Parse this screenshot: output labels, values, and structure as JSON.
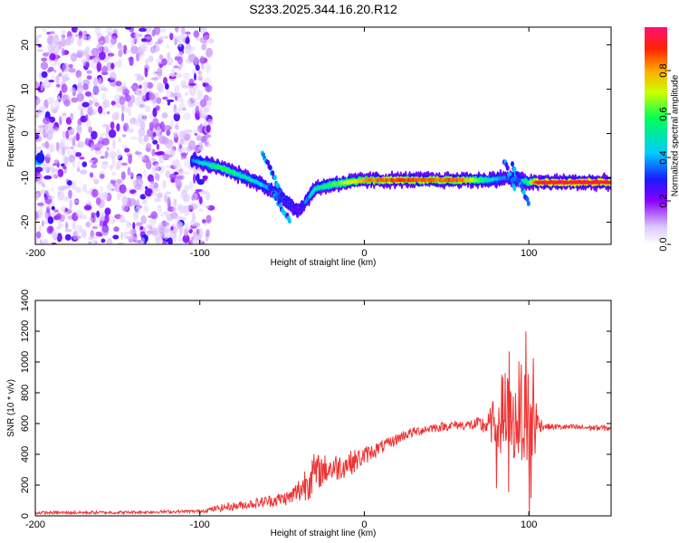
{
  "title": "S233.2025.344.16.20.R12",
  "chart_data": [
    {
      "type": "heatmap",
      "name": "dynamic spectrum",
      "xlabel": "Height of straight line (km)",
      "ylabel": "Frequency (Hz)",
      "xlim": [
        -200,
        150
      ],
      "ylim": [
        -25,
        24
      ],
      "x_ticks": [
        "-200",
        "-100",
        "0",
        "100"
      ],
      "y_ticks": [
        "-20",
        "-10",
        "0",
        "10",
        "20"
      ],
      "colorbar": {
        "label": "Normalized spectral amplitude",
        "range": [
          0,
          1
        ],
        "ticks": [
          "0.0",
          "0.2",
          "0.4",
          "0.6",
          "0.8"
        ]
      },
      "signal_track": {
        "x": [
          -105,
          -95,
          -85,
          -75,
          -65,
          -55,
          -50,
          -45,
          -40,
          -35,
          -30,
          -20,
          -10,
          0,
          10,
          20,
          40,
          60,
          75,
          85,
          95,
          100,
          105,
          150
        ],
        "frequency": [
          -6,
          -7,
          -8,
          -9.5,
          -11,
          -13,
          -14.5,
          -16,
          -17.5,
          -15,
          -12.5,
          -11.5,
          -11,
          -10.5,
          -10.5,
          -10.5,
          -10.5,
          -10.5,
          -10.5,
          -10,
          -10.5,
          -11,
          -11,
          -11
        ],
        "peak_amplitude": [
          0.35,
          0.5,
          0.6,
          0.5,
          0.45,
          0.35,
          0.3,
          0.3,
          0.25,
          0.35,
          0.5,
          0.6,
          0.7,
          0.8,
          0.85,
          0.9,
          0.85,
          0.85,
          0.5,
          0.35,
          0.35,
          0.6,
          0.95,
          0.95
        ]
      },
      "noise_region": {
        "x_range": [
          -200,
          -105
        ],
        "amplitude_range": [
          0.0,
          0.2
        ]
      }
    },
    {
      "type": "line",
      "name": "snr",
      "xlabel": "Height of straight line (km)",
      "ylabel": "SNR (10 * v/v)",
      "xlim": [
        -200,
        150
      ],
      "ylim": [
        0,
        1400
      ],
      "x_ticks": [
        "-200",
        "-100",
        "0",
        "100"
      ],
      "y_ticks": [
        "0",
        "200",
        "400",
        "600",
        "800",
        "1000",
        "1200",
        "1400"
      ],
      "color": "#ee3333",
      "envelope": {
        "x": [
          -200,
          -150,
          -100,
          -85,
          -70,
          -45,
          -38,
          -33,
          -25,
          -15,
          -5,
          5,
          15,
          25,
          40,
          55,
          65,
          75,
          80,
          85,
          90,
          95,
          100,
          103,
          106,
          110,
          130,
          150
        ],
        "mean": [
          20,
          22,
          30,
          55,
          75,
          120,
          180,
          260,
          300,
          320,
          360,
          420,
          470,
          530,
          570,
          590,
          590,
          590,
          600,
          620,
          600,
          620,
          640,
          600,
          600,
          580,
          575,
          570
        ],
        "spread": [
          20,
          20,
          20,
          50,
          60,
          100,
          200,
          300,
          200,
          180,
          150,
          100,
          80,
          70,
          60,
          60,
          70,
          150,
          400,
          750,
          500,
          500,
          650,
          600,
          120,
          40,
          40,
          40
        ]
      }
    }
  ]
}
